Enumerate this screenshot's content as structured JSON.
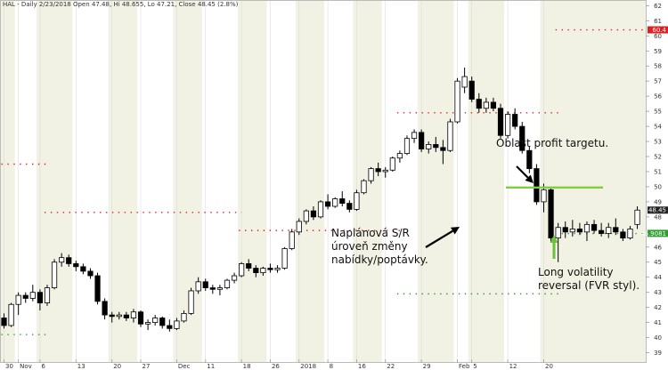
{
  "header": {
    "text": "HAL - Daily 2/23/2018 Open 47.48, Hi 48.655, Lo 47.21, Close 48.45 (2.8%)"
  },
  "annotations": {
    "profit_target": "Oblast profit targetu.",
    "sr_level": [
      "Naplánová S/R",
      "úroveň změny",
      "nabídky/poptávky."
    ],
    "reversal": [
      "Long volatility",
      "reversal (FVR styl)."
    ]
  },
  "price_labels": {
    "resistance": "60.4",
    "last": "48.45",
    "support": "46.9081"
  },
  "colors": {
    "resistance": "#e02020",
    "support": "#2e9e2e",
    "target": "#7ed03a",
    "arrow_green": "#6cc23a",
    "band": "#f1f1e4",
    "grid": "#dcdcdc"
  },
  "chart_data": {
    "type": "candlestick",
    "title": "",
    "ylim": [
      38.5,
      62.2
    ],
    "y_ticks": [
      39,
      40,
      41,
      42,
      43,
      44,
      45,
      46,
      47,
      48,
      49,
      50,
      51,
      52,
      53,
      54,
      55,
      56,
      57,
      58,
      59,
      60,
      61,
      62
    ],
    "x_ticks": [
      {
        "i": 0,
        "label": "30"
      },
      {
        "i": 2,
        "label": "Nov"
      },
      {
        "i": 5,
        "label": "6"
      },
      {
        "i": 10,
        "label": "13"
      },
      {
        "i": 15,
        "label": "20"
      },
      {
        "i": 19,
        "label": "27"
      },
      {
        "i": 24,
        "label": "Dec"
      },
      {
        "i": 28,
        "label": "11"
      },
      {
        "i": 33,
        "label": "18"
      },
      {
        "i": 37,
        "label": "26"
      },
      {
        "i": 41,
        "label": "2018"
      },
      {
        "i": 45,
        "label": "8"
      },
      {
        "i": 49,
        "label": "16"
      },
      {
        "i": 53,
        "label": "22"
      },
      {
        "i": 58,
        "label": "29"
      },
      {
        "i": 63,
        "label": "Feb"
      },
      {
        "i": 65,
        "label": "5"
      },
      {
        "i": 70,
        "label": "12"
      },
      {
        "i": 75,
        "label": "20"
      }
    ],
    "candles": [
      {
        "o": 41.3,
        "h": 41.6,
        "l": 40.6,
        "c": 40.8
      },
      {
        "o": 40.8,
        "h": 42.3,
        "l": 40.7,
        "c": 42.2
      },
      {
        "o": 42.2,
        "h": 43.0,
        "l": 41.5,
        "c": 42.8
      },
      {
        "o": 42.8,
        "h": 43.0,
        "l": 42.3,
        "c": 42.6
      },
      {
        "o": 42.6,
        "h": 43.5,
        "l": 42.4,
        "c": 43.0
      },
      {
        "o": 43.0,
        "h": 43.2,
        "l": 41.8,
        "c": 42.3
      },
      {
        "o": 42.3,
        "h": 43.5,
        "l": 42.1,
        "c": 43.3
      },
      {
        "o": 43.3,
        "h": 45.2,
        "l": 43.2,
        "c": 45.0
      },
      {
        "o": 45.0,
        "h": 45.6,
        "l": 44.7,
        "c": 45.3
      },
      {
        "o": 45.3,
        "h": 45.5,
        "l": 44.7,
        "c": 44.9
      },
      {
        "o": 44.9,
        "h": 45.1,
        "l": 44.4,
        "c": 44.7
      },
      {
        "o": 44.7,
        "h": 44.9,
        "l": 44.2,
        "c": 44.4
      },
      {
        "o": 44.4,
        "h": 44.6,
        "l": 43.9,
        "c": 44.1
      },
      {
        "o": 44.1,
        "h": 44.3,
        "l": 42.2,
        "c": 42.4
      },
      {
        "o": 42.4,
        "h": 42.6,
        "l": 41.2,
        "c": 41.5
      },
      {
        "o": 41.5,
        "h": 41.7,
        "l": 41.0,
        "c": 41.4
      },
      {
        "o": 41.4,
        "h": 41.7,
        "l": 41.2,
        "c": 41.5
      },
      {
        "o": 41.5,
        "h": 41.7,
        "l": 41.1,
        "c": 41.3
      },
      {
        "o": 41.3,
        "h": 41.9,
        "l": 41.0,
        "c": 41.7
      },
      {
        "o": 41.7,
        "h": 41.8,
        "l": 40.7,
        "c": 40.9
      },
      {
        "o": 40.9,
        "h": 41.2,
        "l": 40.5,
        "c": 41.0
      },
      {
        "o": 41.0,
        "h": 41.5,
        "l": 40.8,
        "c": 41.3
      },
      {
        "o": 41.3,
        "h": 41.4,
        "l": 40.6,
        "c": 40.8
      },
      {
        "o": 40.8,
        "h": 41.2,
        "l": 40.4,
        "c": 40.6
      },
      {
        "o": 40.6,
        "h": 41.3,
        "l": 40.5,
        "c": 41.1
      },
      {
        "o": 41.1,
        "h": 41.8,
        "l": 41.0,
        "c": 41.6
      },
      {
        "o": 41.6,
        "h": 43.3,
        "l": 41.5,
        "c": 43.1
      },
      {
        "o": 43.1,
        "h": 44.0,
        "l": 42.9,
        "c": 43.7
      },
      {
        "o": 43.7,
        "h": 43.9,
        "l": 43.1,
        "c": 43.3
      },
      {
        "o": 43.3,
        "h": 43.5,
        "l": 42.9,
        "c": 43.2
      },
      {
        "o": 43.2,
        "h": 43.5,
        "l": 42.8,
        "c": 43.3
      },
      {
        "o": 43.3,
        "h": 43.9,
        "l": 43.2,
        "c": 43.8
      },
      {
        "o": 43.8,
        "h": 44.3,
        "l": 43.6,
        "c": 44.1
      },
      {
        "o": 44.1,
        "h": 45.0,
        "l": 44.0,
        "c": 44.9
      },
      {
        "o": 44.9,
        "h": 45.2,
        "l": 44.4,
        "c": 44.6
      },
      {
        "o": 44.6,
        "h": 44.8,
        "l": 44.0,
        "c": 44.3
      },
      {
        "o": 44.3,
        "h": 44.7,
        "l": 44.1,
        "c": 44.6
      },
      {
        "o": 44.6,
        "h": 44.9,
        "l": 44.3,
        "c": 44.5
      },
      {
        "o": 44.5,
        "h": 44.8,
        "l": 44.3,
        "c": 44.6
      },
      {
        "o": 44.6,
        "h": 46.0,
        "l": 44.5,
        "c": 45.9
      },
      {
        "o": 45.9,
        "h": 47.2,
        "l": 45.8,
        "c": 47.0
      },
      {
        "o": 47.0,
        "h": 47.9,
        "l": 46.8,
        "c": 47.7
      },
      {
        "o": 47.7,
        "h": 48.5,
        "l": 47.5,
        "c": 48.4
      },
      {
        "o": 48.4,
        "h": 48.7,
        "l": 47.8,
        "c": 48.0
      },
      {
        "o": 48.0,
        "h": 49.1,
        "l": 47.9,
        "c": 49.0
      },
      {
        "o": 49.0,
        "h": 49.5,
        "l": 48.5,
        "c": 48.7
      },
      {
        "o": 48.7,
        "h": 49.3,
        "l": 48.6,
        "c": 49.2
      },
      {
        "o": 49.2,
        "h": 49.7,
        "l": 48.7,
        "c": 48.9
      },
      {
        "o": 48.9,
        "h": 49.1,
        "l": 48.3,
        "c": 48.5
      },
      {
        "o": 48.5,
        "h": 49.8,
        "l": 48.4,
        "c": 49.6
      },
      {
        "o": 49.6,
        "h": 50.5,
        "l": 49.5,
        "c": 50.4
      },
      {
        "o": 50.4,
        "h": 51.3,
        "l": 50.2,
        "c": 51.2
      },
      {
        "o": 51.2,
        "h": 51.6,
        "l": 50.7,
        "c": 51.0
      },
      {
        "o": 51.0,
        "h": 51.3,
        "l": 50.6,
        "c": 51.1
      },
      {
        "o": 51.1,
        "h": 52.0,
        "l": 51.0,
        "c": 51.9
      },
      {
        "o": 51.9,
        "h": 52.4,
        "l": 51.6,
        "c": 52.2
      },
      {
        "o": 52.2,
        "h": 53.4,
        "l": 52.1,
        "c": 53.2
      },
      {
        "o": 53.2,
        "h": 53.8,
        "l": 52.9,
        "c": 53.6
      },
      {
        "o": 53.6,
        "h": 53.8,
        "l": 52.3,
        "c": 52.5
      },
      {
        "o": 52.5,
        "h": 53.0,
        "l": 52.2,
        "c": 52.8
      },
      {
        "o": 52.8,
        "h": 53.3,
        "l": 52.3,
        "c": 52.6
      },
      {
        "o": 52.6,
        "h": 53.1,
        "l": 51.5,
        "c": 52.4
      },
      {
        "o": 52.4,
        "h": 54.5,
        "l": 52.3,
        "c": 54.3
      },
      {
        "o": 54.3,
        "h": 57.2,
        "l": 54.2,
        "c": 57.0
      },
      {
        "o": 56.6,
        "h": 57.9,
        "l": 56.2,
        "c": 57.3
      },
      {
        "o": 57.0,
        "h": 57.3,
        "l": 55.6,
        "c": 55.8
      },
      {
        "o": 55.8,
        "h": 56.2,
        "l": 54.9,
        "c": 55.2
      },
      {
        "o": 55.2,
        "h": 55.9,
        "l": 54.9,
        "c": 55.6
      },
      {
        "o": 55.6,
        "h": 55.9,
        "l": 55.0,
        "c": 55.2
      },
      {
        "o": 55.2,
        "h": 55.5,
        "l": 53.2,
        "c": 53.4
      },
      {
        "o": 53.4,
        "h": 55.0,
        "l": 53.2,
        "c": 54.8
      },
      {
        "o": 54.8,
        "h": 55.2,
        "l": 53.8,
        "c": 54.0
      },
      {
        "o": 54.0,
        "h": 54.3,
        "l": 52.2,
        "c": 52.4
      },
      {
        "o": 52.4,
        "h": 52.7,
        "l": 50.9,
        "c": 51.2
      },
      {
        "o": 51.2,
        "h": 51.5,
        "l": 48.8,
        "c": 49.0
      },
      {
        "o": 49.0,
        "h": 50.2,
        "l": 48.3,
        "c": 49.8
      },
      {
        "o": 49.8,
        "h": 50.0,
        "l": 46.3,
        "c": 46.6
      },
      {
        "o": 46.6,
        "h": 47.6,
        "l": 45.0,
        "c": 47.3
      },
      {
        "o": 47.3,
        "h": 47.7,
        "l": 46.6,
        "c": 47.0
      },
      {
        "o": 47.0,
        "h": 47.8,
        "l": 46.7,
        "c": 47.2
      },
      {
        "o": 47.2,
        "h": 47.6,
        "l": 46.8,
        "c": 47.0
      },
      {
        "o": 47.0,
        "h": 47.7,
        "l": 46.4,
        "c": 47.5
      },
      {
        "o": 47.5,
        "h": 47.8,
        "l": 46.9,
        "c": 47.1
      },
      {
        "o": 47.1,
        "h": 47.6,
        "l": 46.7,
        "c": 46.9
      },
      {
        "o": 46.9,
        "h": 47.6,
        "l": 46.6,
        "c": 47.3
      },
      {
        "o": 47.3,
        "h": 47.9,
        "l": 46.8,
        "c": 47.0
      },
      {
        "o": 47.0,
        "h": 47.2,
        "l": 46.4,
        "c": 46.6
      },
      {
        "o": 46.6,
        "h": 47.4,
        "l": 46.5,
        "c": 47.2
      },
      {
        "o": 47.5,
        "h": 48.7,
        "l": 47.2,
        "c": 48.45
      }
    ],
    "resistance_levels": [
      {
        "from": 0,
        "to": 6,
        "y": 51.5
      },
      {
        "from": 6,
        "to": 33,
        "y": 48.3
      },
      {
        "from": 33,
        "to": 55,
        "y": 47.1
      },
      {
        "from": 55,
        "to": 77,
        "y": 54.9
      },
      {
        "from": 77,
        "to": 99,
        "y": 60.4
      }
    ],
    "support_levels": [
      {
        "from": 0,
        "to": 6,
        "y": 40.2
      },
      {
        "from": 55,
        "to": 77,
        "y": 42.9
      },
      {
        "from": 77,
        "to": 99,
        "y": 46.9
      }
    ],
    "profit_target_y": 49.95
  }
}
